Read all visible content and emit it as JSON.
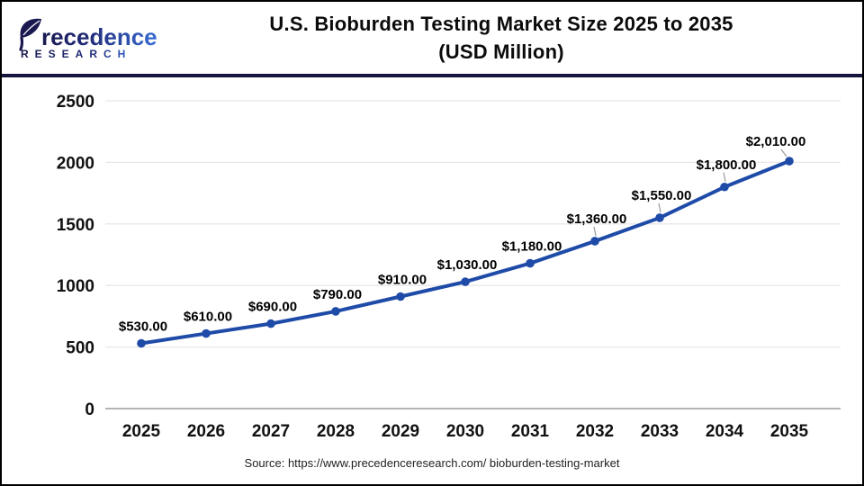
{
  "header": {
    "logo": {
      "brand_visible": "Precedence",
      "brand_tail": "recedence",
      "subtitle": "RESEARCH"
    },
    "title_line1": "U.S. Bioburden Testing Market Size 2025 to 2035",
    "title_line2": "(USD Million)"
  },
  "chart_data": {
    "type": "line",
    "title": "U.S. Bioburden Testing Market Size 2025 to 2035 (USD Million)",
    "x": [
      "2025",
      "2026",
      "2027",
      "2028",
      "2029",
      "2030",
      "2031",
      "2032",
      "2033",
      "2034",
      "2035"
    ],
    "values": [
      530,
      610,
      690,
      790,
      910,
      1030,
      1180,
      1360,
      1550,
      1800,
      2010
    ],
    "labels": [
      "$530.00",
      "$610.00",
      "$690.00",
      "$790.00",
      "$910.00",
      "$1,030.00",
      "$1,180.00",
      "$1,360.00",
      "$1,550.00",
      "$1,800.00",
      "$2,010.00"
    ],
    "ylabel": "",
    "xlabel": "",
    "ylim": [
      0,
      2500
    ],
    "yticks": [
      0,
      500,
      1000,
      1500,
      2000,
      2500
    ],
    "grid": true,
    "legend": "none",
    "line_color": "#1F4BA8",
    "marker": "circle"
  },
  "footer": {
    "source": "Source: https://www.precedenceresearch.com/ bioburden-testing-market"
  },
  "colors": {
    "divider_navy": "#15153F",
    "line_blue": "#1F4BA8",
    "grid_line": "#E8E8E8",
    "axis_line": "#B3B3B3",
    "leader_line": "#9A9A9A",
    "logo_navy": "#191950",
    "logo_blue": "#3A6ED6"
  }
}
